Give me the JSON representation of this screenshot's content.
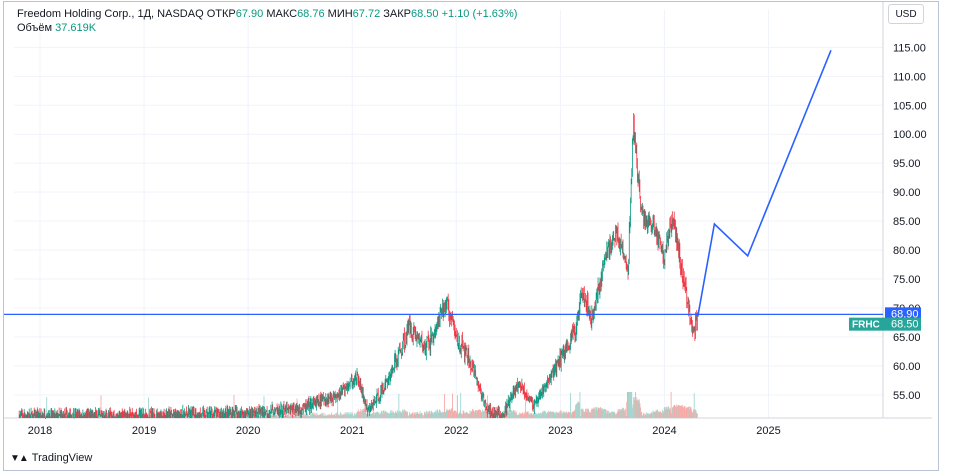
{
  "legend": {
    "name": "Freedom Holding Corp.",
    "interval": "1Д",
    "exchange": "NASDAQ",
    "open_label": "ОТКР",
    "open": "67.90",
    "high_label": "МАКС",
    "high": "68.76",
    "low_label": "МИН",
    "low": "67.72",
    "close_label": "ЗАКР",
    "close": "68.50",
    "change": "+1.10 (+1.63%)",
    "volume_label": "Объём",
    "volume": "37.619K"
  },
  "currency": "USD",
  "brand": "TradingView",
  "colors": {
    "up": "#089981",
    "down": "#f23645",
    "line": "#2962ff",
    "badge": "#26a69a",
    "price_label": "#2962ff"
  },
  "chart_data": {
    "type": "line",
    "title": "",
    "y_ticks": [
      "115.00",
      "110.00",
      "105.00",
      "100.00",
      "95.00",
      "90.00",
      "85.00",
      "80.00",
      "75.00",
      "70.00",
      "65.00",
      "60.00",
      "55.00"
    ],
    "x_ticks": [
      "2018",
      "2019",
      "2020",
      "2021",
      "2022",
      "2023",
      "2024",
      "2025"
    ],
    "ylim": [
      51,
      118
    ],
    "xlim": [
      2017.75,
      2026.1
    ],
    "price_series": [
      {
        "x": 2017.8,
        "y": 51.2
      },
      {
        "x": 2019.0,
        "y": 51.3
      },
      {
        "x": 2020.0,
        "y": 51.8
      },
      {
        "x": 2020.5,
        "y": 52.5
      },
      {
        "x": 2020.85,
        "y": 55
      },
      {
        "x": 2021.05,
        "y": 58
      },
      {
        "x": 2021.15,
        "y": 52
      },
      {
        "x": 2021.3,
        "y": 56
      },
      {
        "x": 2021.45,
        "y": 62
      },
      {
        "x": 2021.55,
        "y": 67
      },
      {
        "x": 2021.7,
        "y": 63
      },
      {
        "x": 2021.8,
        "y": 66
      },
      {
        "x": 2021.9,
        "y": 71
      },
      {
        "x": 2022.0,
        "y": 65
      },
      {
        "x": 2022.15,
        "y": 60
      },
      {
        "x": 2022.3,
        "y": 52
      },
      {
        "x": 2022.45,
        "y": 51.5
      },
      {
        "x": 2022.6,
        "y": 57
      },
      {
        "x": 2022.75,
        "y": 53
      },
      {
        "x": 2022.9,
        "y": 58
      },
      {
        "x": 2023.05,
        "y": 63
      },
      {
        "x": 2023.15,
        "y": 66
      },
      {
        "x": 2023.2,
        "y": 74
      },
      {
        "x": 2023.3,
        "y": 68
      },
      {
        "x": 2023.45,
        "y": 80
      },
      {
        "x": 2023.55,
        "y": 83
      },
      {
        "x": 2023.65,
        "y": 76
      },
      {
        "x": 2023.7,
        "y": 102
      },
      {
        "x": 2023.78,
        "y": 86
      },
      {
        "x": 2023.9,
        "y": 84
      },
      {
        "x": 2024.0,
        "y": 79
      },
      {
        "x": 2024.08,
        "y": 86
      },
      {
        "x": 2024.2,
        "y": 73
      },
      {
        "x": 2024.28,
        "y": 66
      },
      {
        "x": 2024.32,
        "y": 68.5
      }
    ],
    "forecast_series": [
      {
        "x": 2024.32,
        "y": 68.5
      },
      {
        "x": 2024.48,
        "y": 84.5
      },
      {
        "x": 2024.8,
        "y": 79
      },
      {
        "x": 2025.6,
        "y": 114.5
      }
    ],
    "horizontal_line": 68.9,
    "labels": {
      "level": "68.90",
      "ticker": "FRHC",
      "last": "68.50"
    }
  }
}
